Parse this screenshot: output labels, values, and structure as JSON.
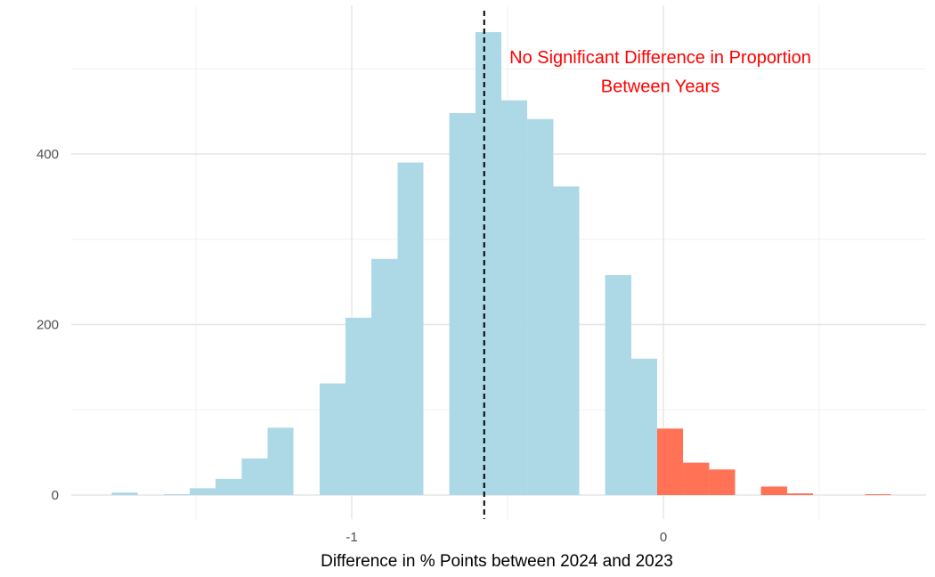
{
  "chart_data": {
    "type": "bar",
    "subtype": "histogram",
    "title": "",
    "xlabel": "Difference in % Points between 2024 and 2023",
    "ylabel": "",
    "xlim": [
      -1.9,
      0.84
    ],
    "ylim": [
      0,
      570
    ],
    "x_ticks": [
      -1,
      0
    ],
    "x_tick_labels": [
      "-1",
      "0"
    ],
    "y_ticks": [
      0,
      200,
      400
    ],
    "y_tick_labels": [
      "0",
      "200",
      "400"
    ],
    "x_minor_grid": [
      -1.5,
      -0.5,
      0.5
    ],
    "y_minor_grid": [
      100,
      300,
      500
    ],
    "grid": true,
    "bin_width": 0.0833,
    "bins": [
      {
        "x0": -1.77,
        "x1": -1.687,
        "count": 3,
        "group": "negative"
      },
      {
        "x0": -1.603,
        "x1": -1.52,
        "count": 1,
        "group": "negative"
      },
      {
        "x0": -1.52,
        "x1": -1.437,
        "count": 8,
        "group": "negative"
      },
      {
        "x0": -1.437,
        "x1": -1.353,
        "count": 19,
        "group": "negative"
      },
      {
        "x0": -1.353,
        "x1": -1.27,
        "count": 43,
        "group": "negative"
      },
      {
        "x0": -1.27,
        "x1": -1.187,
        "count": 79,
        "group": "negative"
      },
      {
        "x0": -1.103,
        "x1": -1.02,
        "count": 131,
        "group": "negative"
      },
      {
        "x0": -1.02,
        "x1": -0.937,
        "count": 208,
        "group": "negative"
      },
      {
        "x0": -0.937,
        "x1": -0.853,
        "count": 277,
        "group": "negative"
      },
      {
        "x0": -0.853,
        "x1": -0.77,
        "count": 390,
        "group": "negative"
      },
      {
        "x0": -0.687,
        "x1": -0.603,
        "count": 448,
        "group": "negative"
      },
      {
        "x0": -0.603,
        "x1": -0.52,
        "count": 543,
        "group": "negative"
      },
      {
        "x0": -0.52,
        "x1": -0.437,
        "count": 463,
        "group": "negative"
      },
      {
        "x0": -0.437,
        "x1": -0.353,
        "count": 441,
        "group": "negative"
      },
      {
        "x0": -0.353,
        "x1": -0.27,
        "count": 362,
        "group": "negative"
      },
      {
        "x0": -0.187,
        "x1": -0.103,
        "count": 258,
        "group": "negative"
      },
      {
        "x0": -0.103,
        "x1": -0.02,
        "count": 160,
        "group": "negative"
      },
      {
        "x0": -0.02,
        "x1": 0.063,
        "count": 78,
        "group": "positive"
      },
      {
        "x0": 0.063,
        "x1": 0.147,
        "count": 38,
        "group": "positive"
      },
      {
        "x0": 0.147,
        "x1": 0.23,
        "count": 30,
        "group": "positive"
      },
      {
        "x0": 0.313,
        "x1": 0.397,
        "count": 10,
        "group": "positive"
      },
      {
        "x0": 0.397,
        "x1": 0.48,
        "count": 2,
        "group": "positive"
      },
      {
        "x0": 0.647,
        "x1": 0.73,
        "count": 1,
        "group": "positive"
      }
    ],
    "colors": {
      "negative": "#add8e6",
      "positive": "#ff7256"
    },
    "reference_line": {
      "x": -0.575,
      "style": "dashed",
      "color": "#000000"
    },
    "annotation": {
      "lines": [
        "No Significant Difference in Proportion",
        "Between Years"
      ],
      "color": "#ff0000",
      "x": -0.01,
      "y": [
        514,
        480
      ]
    }
  }
}
